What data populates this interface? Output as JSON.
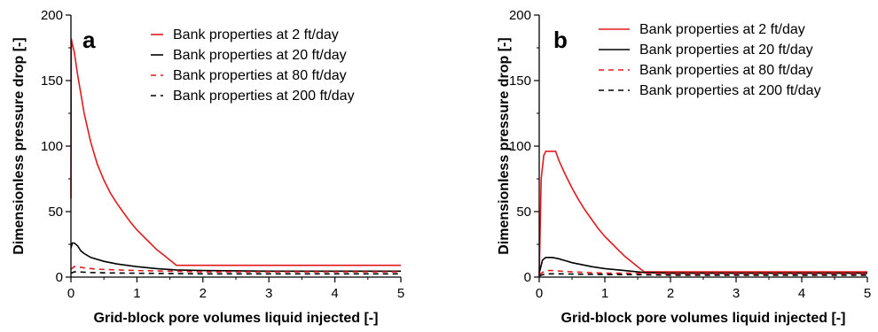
{
  "chart_data": [
    {
      "type": "line",
      "panel_label": "a",
      "xlabel": "Grid-block pore volumes liquid injected [-]",
      "ylabel": "Dimensionless pressure drop [-]",
      "xlim": [
        0,
        5
      ],
      "ylim": [
        0,
        200
      ],
      "xticks": [
        "0",
        "1",
        "2",
        "3",
        "4",
        "5"
      ],
      "yticks": [
        "0",
        "50",
        "100",
        "150",
        "200"
      ],
      "grid": false,
      "legend_position": "top-right",
      "series": [
        {
          "name": "Bank properties at 2 ft/day",
          "color": "#e31a1c",
          "dash": "solid",
          "x": [
            0,
            0.005,
            0.02,
            0.05,
            0.1,
            0.2,
            0.3,
            0.4,
            0.5,
            0.6,
            0.7,
            0.8,
            0.9,
            1.0,
            1.1,
            1.2,
            1.3,
            1.4,
            1.5,
            1.6,
            1.7,
            2.0,
            3.0,
            4.0,
            5.0
          ],
          "values": [
            60,
            182,
            178,
            172,
            155,
            125,
            103,
            86,
            74,
            64,
            56,
            49,
            42,
            36,
            31,
            26,
            21,
            17,
            13,
            9,
            9,
            9,
            9,
            9,
            9
          ]
        },
        {
          "name": "Bank properties at 20 ft/day",
          "color": "#000000",
          "dash": "solid",
          "x": [
            0,
            0.02,
            0.05,
            0.1,
            0.15,
            0.2,
            0.3,
            0.5,
            0.7,
            1.0,
            1.3,
            1.6,
            2.0,
            3.0,
            4.0,
            5.0
          ],
          "values": [
            22,
            26,
            26,
            24,
            20,
            18,
            15,
            12,
            10,
            8,
            6.5,
            5.5,
            5,
            4.5,
            4.5,
            4.5
          ]
        },
        {
          "name": "Bank properties at 80 ft/day",
          "color": "#e31a1c",
          "dash": "dashed",
          "x": [
            0,
            0.05,
            0.1,
            0.2,
            0.4,
            0.7,
            1.0,
            1.5,
            2.0,
            3.0,
            4.0,
            5.0
          ],
          "values": [
            6,
            8,
            8,
            7,
            6,
            5.5,
            5,
            4.5,
            4,
            4,
            4,
            4
          ]
        },
        {
          "name": "Bank properties at 200 ft/day",
          "color": "#000000",
          "dash": "dashed",
          "x": [
            0,
            0.05,
            0.1,
            0.3,
            0.6,
            1.0,
            1.5,
            2.0,
            3.0,
            4.0,
            5.0
          ],
          "values": [
            3,
            4,
            4,
            3.5,
            3.2,
            3,
            2.8,
            2.5,
            2.5,
            2.5,
            2.5
          ]
        }
      ]
    },
    {
      "type": "line",
      "panel_label": "b",
      "xlabel": "Grid-block pore volumes liquid injected [-]",
      "ylabel": "Dimensionless pressure drop [-]",
      "xlim": [
        0,
        5
      ],
      "ylim": [
        0,
        200
      ],
      "xticks": [
        "0",
        "1",
        "2",
        "3",
        "4",
        "5"
      ],
      "yticks": [
        "0",
        "50",
        "100",
        "150",
        "200"
      ],
      "grid": false,
      "legend_position": "top-right",
      "series": [
        {
          "name": "Bank properties at 2 ft/day",
          "color": "#e31a1c",
          "dash": "solid",
          "x": [
            0,
            0.03,
            0.07,
            0.1,
            0.2,
            0.25,
            0.3,
            0.4,
            0.5,
            0.6,
            0.7,
            0.8,
            0.9,
            1.0,
            1.1,
            1.2,
            1.3,
            1.4,
            1.5,
            1.6,
            1.7,
            2.0,
            3.0,
            4.0,
            5.0
          ],
          "values": [
            0,
            75,
            93,
            96,
            96,
            96,
            89,
            78,
            68,
            59,
            51,
            44,
            37,
            31,
            26,
            21,
            16,
            12,
            8,
            4,
            4,
            4,
            4,
            4,
            4
          ]
        },
        {
          "name": "Bank properties at 20 ft/day",
          "color": "#000000",
          "dash": "solid",
          "x": [
            0,
            0.05,
            0.1,
            0.2,
            0.3,
            0.5,
            0.8,
            1.0,
            1.3,
            1.6,
            2.0,
            3.0,
            4.0,
            5.0
          ],
          "values": [
            3,
            13,
            15,
            15,
            14,
            11,
            8,
            6.5,
            5,
            3.5,
            3,
            3,
            3,
            3
          ]
        },
        {
          "name": "Bank properties at 80 ft/day",
          "color": "#e31a1c",
          "dash": "dashed",
          "x": [
            0,
            0.1,
            0.2,
            0.5,
            1.0,
            1.5,
            2.0,
            3.0,
            4.0,
            5.0
          ],
          "values": [
            2,
            5,
            5,
            4,
            3,
            3,
            2.5,
            2.5,
            2.5,
            2.5
          ]
        },
        {
          "name": "Bank properties at 200 ft/day",
          "color": "#000000",
          "dash": "dashed",
          "x": [
            0,
            0.1,
            0.3,
            0.6,
            1.0,
            1.5,
            2.0,
            3.0,
            4.0,
            5.0
          ],
          "values": [
            1,
            2.5,
            2.5,
            2.2,
            2,
            1.8,
            1.5,
            1.5,
            1.5,
            1.5
          ]
        }
      ]
    }
  ]
}
